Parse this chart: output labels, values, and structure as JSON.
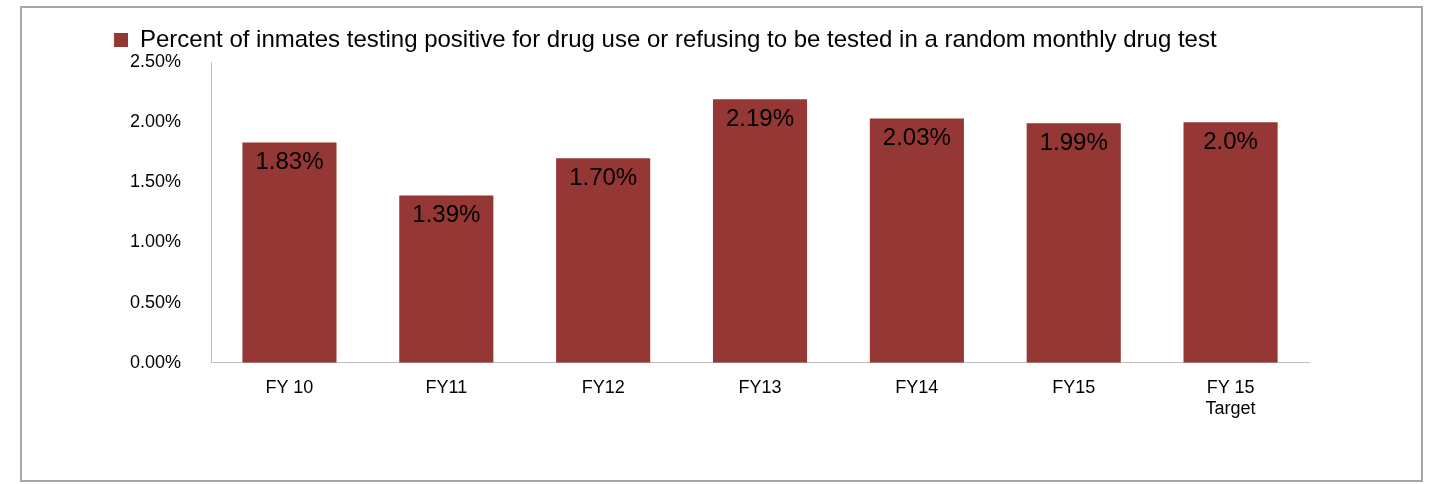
{
  "chart_data": {
    "type": "bar",
    "categories": [
      "FY 10",
      "FY11",
      "FY12",
      "FY13",
      "FY14",
      "FY15",
      "FY 15 Target"
    ],
    "series": [
      {
        "name": "Percent of inmates testing positive for drug use or refusing to be tested in a random monthly drug test",
        "color": "#953735",
        "values": [
          1.83,
          1.39,
          1.7,
          2.19,
          2.03,
          1.99,
          2.0
        ],
        "value_labels": [
          "1.83%",
          "1.39%",
          "1.70%",
          "2.19%",
          "2.03%",
          "1.99%",
          "2.0%"
        ]
      }
    ],
    "ylim": [
      0,
      2.5
    ],
    "yticks": [
      {
        "value": 0,
        "label": "0.00%"
      },
      {
        "value": 0.5,
        "label": "0.50%"
      },
      {
        "value": 1,
        "label": "1.00%"
      },
      {
        "value": 1.5,
        "label": "1.50%"
      },
      {
        "value": 2,
        "label": "2.00%"
      },
      {
        "value": 2.5,
        "label": "2.50%"
      }
    ],
    "legend": "top",
    "grid": false
  }
}
